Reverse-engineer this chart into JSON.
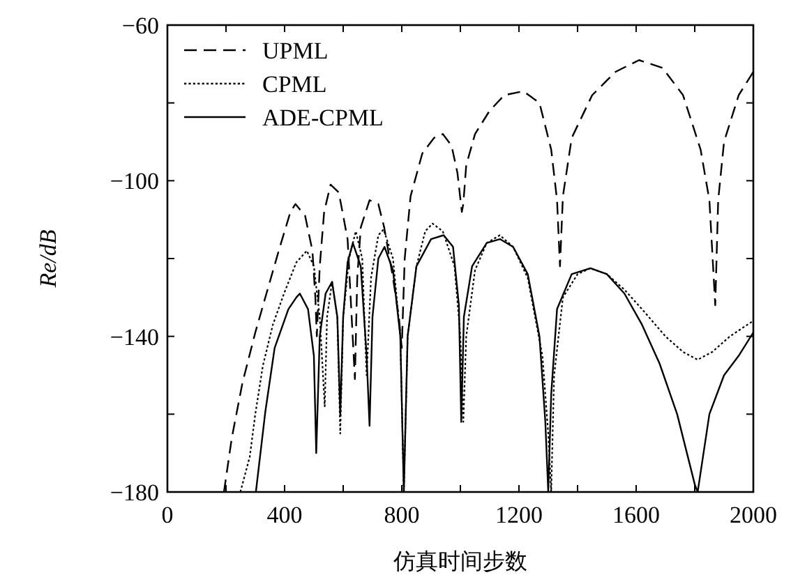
{
  "chart_data": {
    "type": "line",
    "xlabel": "仿真时间步数",
    "ylabel": "Re/dB",
    "xlim": [
      0,
      2000
    ],
    "ylim": [
      -180,
      -60
    ],
    "xticks": [
      0,
      {
        "value": 200,
        "label": null
      },
      400,
      {
        "value": 600,
        "label": null
      },
      800,
      {
        "value": 1000,
        "label": null
      },
      1200,
      {
        "value": 1400,
        "label": null
      },
      1600,
      {
        "value": 1800,
        "label": null
      },
      2000
    ],
    "yticks": [
      -180,
      {
        "value": -160,
        "label": null
      },
      -140,
      {
        "value": -120,
        "label": null
      },
      -100,
      {
        "value": -80,
        "label": null
      },
      -60
    ],
    "grid": false,
    "legend": "top left",
    "series": [
      {
        "name": "UPML",
        "color": "#000000",
        "line_style": "dashed",
        "x": [
          193,
          220,
          256,
          300,
          338,
          380,
          420,
          437,
          470,
          495,
          505,
          510,
          520,
          535,
          557,
          585,
          615,
          640,
          648,
          660,
          690,
          720,
          740,
          770,
          790,
          800,
          810,
          830,
          870,
          910,
          940,
          970,
          990,
          1005,
          1010,
          1020,
          1050,
          1100,
          1150,
          1215,
          1270,
          1310,
          1330,
          1340,
          1350,
          1380,
          1450,
          1530,
          1610,
          1690,
          1760,
          1820,
          1850,
          1870,
          1880,
          1900,
          1950,
          2000
        ],
        "values": [
          -180,
          -166,
          -152,
          -139,
          -129,
          -118,
          -108,
          -106,
          -109,
          -118,
          -130,
          -140,
          -122,
          -108,
          -101,
          -103,
          -115,
          -151,
          -125,
          -112,
          -105,
          -106,
          -112,
          -125,
          -135,
          -143,
          -120,
          -104,
          -93,
          -89,
          -88,
          -91,
          -98,
          -108,
          -106,
          -96,
          -88,
          -82,
          -78,
          -77,
          -80,
          -92,
          -105,
          -122,
          -104,
          -89,
          -78,
          -72,
          -69,
          -71,
          -78,
          -92,
          -105,
          -132,
          -105,
          -90,
          -78,
          -72
        ]
      },
      {
        "name": "CPML",
        "color": "#000000",
        "line_style": "dotted",
        "x": [
          249,
          281,
          300,
          326,
          360,
          398,
          440,
          476,
          500,
          520,
          537,
          545,
          562,
          580,
          590,
          600,
          620,
          643,
          665,
          680,
          695,
          720,
          738,
          770,
          795,
          807,
          820,
          850,
          880,
          905,
          940,
          980,
          1000,
          1010,
          1020,
          1050,
          1090,
          1135,
          1180,
          1230,
          1280,
          1300,
          1310,
          1320,
          1350,
          1400,
          1444,
          1500,
          1560,
          1620,
          1700,
          1760,
          1810,
          1860,
          1920,
          1960,
          2000
        ],
        "values": [
          -180,
          -171,
          -160,
          -147.5,
          -137,
          -129,
          -121,
          -118,
          -122,
          -135,
          -158,
          -135,
          -126,
          -135,
          -165,
          -135,
          -120,
          -113,
          -120,
          -150,
          -125,
          -114,
          -112.5,
          -120,
          -140,
          -180,
          -140,
          -122,
          -113,
          -111,
          -113,
          -122,
          -140,
          -162,
          -140,
          -123,
          -116,
          -114,
          -117,
          -125,
          -145,
          -165,
          -180,
          -150,
          -130,
          -124,
          -122.5,
          -124,
          -128,
          -133,
          -140,
          -144,
          -146,
          -144,
          -140,
          -138,
          -136
        ]
      },
      {
        "name": "ADE-CPML",
        "color": "#000000",
        "line_style": "solid",
        "x": [
          302,
          334,
          366,
          413,
          440,
          452,
          480,
          500,
          508,
          520,
          540,
          562,
          580,
          590,
          600,
          615,
          633,
          660,
          680,
          690,
          700,
          720,
          741,
          770,
          795,
          807,
          820,
          850,
          900,
          943,
          975,
          995,
          1003,
          1012,
          1040,
          1090,
          1135,
          1180,
          1230,
          1270,
          1290,
          1300,
          1310,
          1330,
          1380,
          1444,
          1500,
          1560,
          1620,
          1680,
          1740,
          1780,
          1800,
          1810,
          1820,
          1850,
          1900,
          1950,
          2000
        ],
        "values": [
          -180,
          -159.5,
          -143,
          -133,
          -130,
          -129,
          -133,
          -145,
          -170,
          -140,
          -129,
          -126,
          -135,
          -160,
          -135,
          -121,
          -116,
          -122,
          -145,
          -163,
          -135,
          -120,
          -117,
          -123,
          -140,
          -180,
          -140,
          -122,
          -115,
          -114,
          -117,
          -132,
          -162,
          -135,
          -122,
          -116,
          -115,
          -117,
          -124,
          -140,
          -162,
          -180,
          -155,
          -133,
          -124,
          -122.5,
          -124,
          -129,
          -137,
          -147,
          -160,
          -172,
          -178,
          -180,
          -175,
          -160,
          -150,
          -145,
          -139
        ]
      }
    ]
  }
}
